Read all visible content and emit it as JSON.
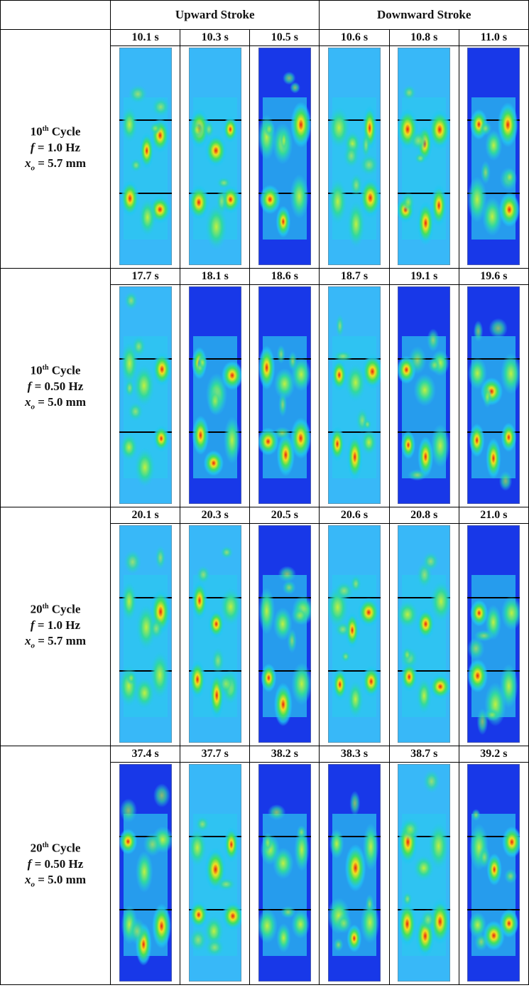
{
  "header": {
    "upward": "Upward Stroke",
    "downward": "Downward Stroke"
  },
  "rows": [
    {
      "cycle": "10",
      "suffix": "th",
      "word": "Cycle",
      "f": "f",
      "f_text": "= 1.0 Hz",
      "x": "x",
      "x_sub": "o",
      "x_text": "= 5.7 mm",
      "times": [
        "10.1 s",
        "10.3 s",
        "10.5 s",
        "10.6 s",
        "10.8 s",
        "11.0 s"
      ]
    },
    {
      "cycle": "10",
      "suffix": "th",
      "word": "Cycle",
      "f": "f",
      "f_text": "= 0.50 Hz",
      "x": "x",
      "x_sub": "o",
      "x_text": "= 5.0 mm",
      "times": [
        "17.7 s",
        "18.1 s",
        "18.6 s",
        "18.7 s",
        "19.1 s",
        "19.6 s"
      ]
    },
    {
      "cycle": "20",
      "suffix": "th",
      "word": "Cycle",
      "f": "f",
      "f_text": "= 1.0 Hz",
      "x": "x",
      "x_sub": "o",
      "x_text": "= 5.7 mm",
      "times": [
        "20.1 s",
        "20.3 s",
        "20.5 s",
        "20.6 s",
        "20.8 s",
        "21.0 s"
      ]
    },
    {
      "cycle": "20",
      "suffix": "th",
      "word": "Cycle",
      "f": "f",
      "f_text": "= 0.50 Hz",
      "x": "x",
      "x_sub": "o",
      "x_text": "= 5.0 mm",
      "times": [
        "37.4 s",
        "37.7 s",
        "38.2 s",
        "38.3 s",
        "38.7 s",
        "39.2 s"
      ]
    }
  ]
}
